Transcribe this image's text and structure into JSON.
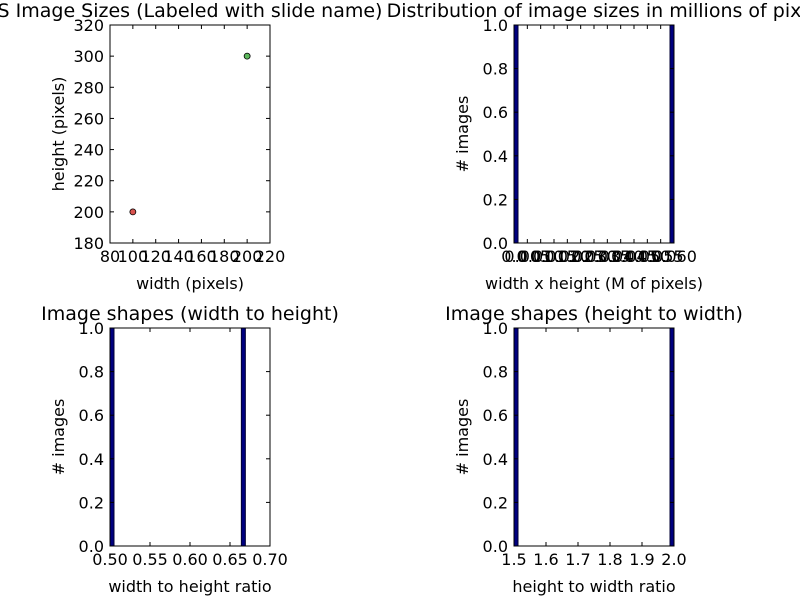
{
  "chart_data": [
    {
      "type": "scatter",
      "title": "S Image Sizes (Labeled with slide name)",
      "xlabel": "width (pixels)",
      "ylabel": "height (pixels)",
      "xlim": [
        80,
        220
      ],
      "ylim": [
        180,
        320
      ],
      "xticks": [
        80,
        100,
        120,
        140,
        160,
        180,
        200,
        220
      ],
      "yticks": [
        180,
        200,
        220,
        240,
        260,
        280,
        300,
        320
      ],
      "xticklabels": [
        "80",
        "100",
        "120",
        "140",
        "160",
        "180",
        "200",
        "220"
      ],
      "yticklabels": [
        "180",
        "200",
        "220",
        "240",
        "260",
        "280",
        "300",
        "320"
      ],
      "points": [
        {
          "x": 100,
          "y": 200,
          "color": "#d9534f"
        },
        {
          "x": 200,
          "y": 300,
          "color": "#5cb85c"
        }
      ]
    },
    {
      "type": "bar",
      "title": "Distribution of image sizes in millions of pix",
      "xlabel": "width x height (M of pixels)",
      "ylabel": "# images",
      "xlim": [
        0.0,
        0.06
      ],
      "ylim": [
        0.0,
        1.0
      ],
      "xticks": [
        0.0,
        0.005,
        0.01,
        0.015,
        0.02,
        0.025,
        0.03,
        0.035,
        0.04,
        0.045,
        0.05,
        0.055,
        0.06
      ],
      "xticklabels": [
        "0.0",
        "0.005",
        "0.010",
        "0.015",
        "0.020",
        "0.025",
        "0.030",
        "0.035",
        "0.040",
        "0.045",
        "0.050",
        "0.055",
        "0.060"
      ],
      "yticks": [
        0.0,
        0.2,
        0.4,
        0.6,
        0.8,
        1.0
      ],
      "yticklabels": [
        "0.0",
        "0.2",
        "0.4",
        "0.6",
        "0.8",
        "1.0"
      ],
      "bars": [
        {
          "x": 0.0,
          "value": 1
        },
        {
          "x": 0.06,
          "value": 1
        }
      ]
    },
    {
      "type": "bar",
      "title": "Image shapes (width to height)",
      "xlabel": "width to height ratio",
      "ylabel": "# images",
      "xlim": [
        0.5,
        0.7
      ],
      "ylim": [
        0.0,
        1.0
      ],
      "xticks": [
        0.5,
        0.55,
        0.6,
        0.65,
        0.7
      ],
      "xticklabels": [
        "0.50",
        "0.55",
        "0.60",
        "0.65",
        "0.70"
      ],
      "yticks": [
        0.0,
        0.2,
        0.4,
        0.6,
        0.8,
        1.0
      ],
      "yticklabels": [
        "0.0",
        "0.2",
        "0.4",
        "0.6",
        "0.8",
        "1.0"
      ],
      "bars": [
        {
          "x": 0.5,
          "value": 1
        },
        {
          "x": 0.6667,
          "value": 1
        }
      ]
    },
    {
      "type": "bar",
      "title": "Image shapes (height to width)",
      "xlabel": "height to width ratio",
      "ylabel": "# images",
      "xlim": [
        1.5,
        2.0
      ],
      "ylim": [
        0.0,
        1.0
      ],
      "xticks": [
        1.5,
        1.6,
        1.7,
        1.8,
        1.9,
        2.0
      ],
      "xticklabels": [
        "1.5",
        "1.6",
        "1.7",
        "1.8",
        "1.9",
        "2.0"
      ],
      "yticks": [
        0.0,
        0.2,
        0.4,
        0.6,
        0.8,
        1.0
      ],
      "yticklabels": [
        "0.0",
        "0.2",
        "0.4",
        "0.6",
        "0.8",
        "1.0"
      ],
      "bars": [
        {
          "x": 1.5,
          "value": 1
        },
        {
          "x": 2.0,
          "value": 1
        }
      ]
    }
  ],
  "colors": {
    "bar": "#00007f",
    "bar_edge": "#000033",
    "axis": "#000000",
    "background": "#ffffff"
  }
}
